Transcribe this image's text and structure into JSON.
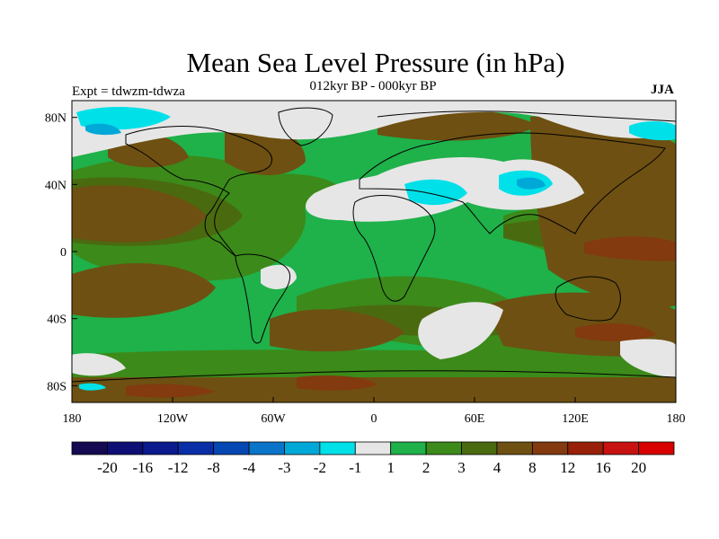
{
  "header": {
    "title": "Mean Sea Level Pressure (in hPa)",
    "subtitle": "012kyr BP - 000kyr BP",
    "left_label": "Expt = tdwzm-tdwza",
    "right_label": "JJA"
  },
  "map": {
    "projection": "cylindrical equidistant",
    "lon_range": [
      -180,
      180
    ],
    "lat_range": [
      -90,
      90
    ],
    "x_ticks": [
      "180",
      "120W",
      "60W",
      "0",
      "60E",
      "120E",
      "180"
    ],
    "y_ticks": [
      "80N",
      "40N",
      "0",
      "40S",
      "80S"
    ],
    "coastlines": true
  },
  "colorbar": {
    "labels": [
      "-20",
      "-16",
      "-12",
      "-8",
      "-4",
      "-3",
      "-2",
      "-1",
      "1",
      "2",
      "3",
      "4",
      "8",
      "12",
      "16",
      "20"
    ],
    "colors": [
      "#130a52",
      "#0e0e75",
      "#0b1a8c",
      "#0a2ea8",
      "#0548b4",
      "#0a74c8",
      "#00a8d8",
      "#00e0e8",
      "#e6e6e6",
      "#1fb14a",
      "#3c8a1a",
      "#4a6a10",
      "#6e5012",
      "#823a0e",
      "#982008",
      "#c81212",
      "#d80000"
    ]
  },
  "colors": {
    "white_band": "#e6e6e6",
    "green_light": "#1fb14a",
    "green_dark": "#3c8a1a",
    "olive": "#4a6a10",
    "brown": "#6e5012",
    "brown_red": "#823a0e",
    "cyan": "#00e0e8",
    "light_blue": "#00a8d8"
  }
}
